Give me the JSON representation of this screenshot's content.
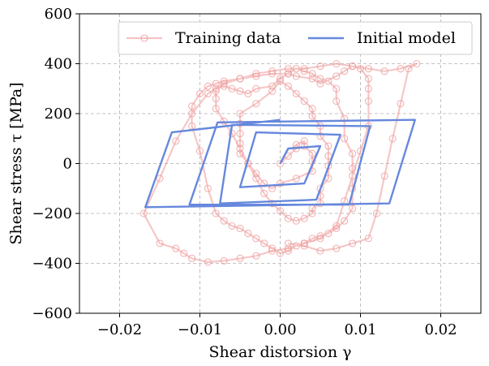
{
  "chart_data": {
    "type": "line",
    "title": "",
    "xlabel": "Shear distorsion γ",
    "ylabel": "Shear stress τ [MPa]",
    "xlim": [
      -0.025,
      0.025
    ],
    "ylim": [
      -600,
      600
    ],
    "xticks": [
      -0.02,
      -0.01,
      0.0,
      0.01,
      0.02
    ],
    "xtick_labels": [
      "−0.02",
      "−0.01",
      "0.00",
      "0.01",
      "0.02"
    ],
    "yticks": [
      -600,
      -400,
      -200,
      0,
      200,
      400,
      600
    ],
    "ytick_labels": [
      "−600",
      "−400",
      "−200",
      "0",
      "200",
      "400",
      "600"
    ],
    "grid": true,
    "legend": {
      "placement": "top-right",
      "columns": 2
    },
    "series": [
      {
        "name": "Training data",
        "color": "#ee9999",
        "marker": "circle",
        "x": [
          0.0,
          0.001,
          0.002,
          0.002,
          0.003,
          0.003,
          0.004,
          0.004,
          0.004,
          0.002,
          0.0,
          -0.001,
          -0.002,
          -0.003,
          -0.004,
          -0.005,
          -0.005,
          -0.005,
          -0.005,
          -0.005,
          -0.003,
          -0.001,
          0.0,
          0.001,
          0.002,
          0.003,
          0.004,
          0.004,
          0.005,
          0.005,
          0.006,
          0.006,
          0.006,
          0.006,
          0.005,
          0.005,
          0.005,
          0.004,
          0.004,
          0.003,
          0.002,
          0.001,
          0.0,
          -0.001,
          -0.002,
          -0.003,
          -0.004,
          -0.005,
          -0.006,
          -0.007,
          -0.008,
          -0.008,
          -0.008,
          -0.008,
          -0.007,
          -0.006,
          -0.005,
          -0.004,
          -0.003,
          -0.001,
          0.0,
          0.001,
          0.002,
          0.003,
          0.004,
          0.005,
          0.006,
          0.007,
          0.007,
          0.008,
          0.008,
          0.009,
          0.009,
          0.009,
          0.009,
          0.008,
          0.007,
          0.006,
          0.005,
          0.004,
          0.003,
          0.002,
          0.001,
          0.0,
          -0.001,
          -0.002,
          -0.003,
          -0.004,
          -0.005,
          -0.006,
          -0.007,
          -0.008,
          -0.009,
          -0.01,
          -0.011,
          -0.011,
          -0.01,
          -0.009,
          -0.008,
          -0.007,
          -0.005,
          -0.003,
          -0.001,
          0.001,
          0.002,
          0.004,
          0.005,
          0.007,
          0.008,
          0.009,
          0.01,
          0.011,
          0.011,
          0.011,
          0.011,
          0.01,
          0.009,
          0.008,
          0.007,
          0.005,
          0.003,
          0.001,
          -0.001,
          -0.003,
          -0.005,
          -0.007,
          -0.009,
          -0.011,
          -0.012,
          -0.013,
          -0.015,
          -0.017,
          -0.015,
          -0.013,
          -0.011,
          -0.009,
          -0.007,
          -0.005,
          -0.003,
          -0.001,
          0.001,
          0.003,
          0.005,
          0.007,
          0.009,
          0.011,
          0.013,
          0.015,
          0.017,
          0.016,
          0.015,
          0.014,
          0.013,
          0.012,
          0.011,
          0.009,
          0.007,
          0.005,
          0.003,
          0.001
        ],
        "y": [
          0,
          30,
          60,
          75,
          90,
          70,
          40,
          10,
          -30,
          -60,
          -80,
          -100,
          -80,
          -40,
          0,
          40,
          80,
          120,
          160,
          200,
          240,
          290,
          330,
          310,
          280,
          250,
          220,
          190,
          150,
          110,
          70,
          30,
          -10,
          -60,
          -100,
          -130,
          -160,
          -180,
          -200,
          -220,
          -230,
          -220,
          -190,
          -160,
          -120,
          -60,
          0,
          60,
          120,
          170,
          220,
          260,
          290,
          300,
          310,
          300,
          290,
          280,
          300,
          310,
          340,
          360,
          380,
          370,
          360,
          340,
          330,
          300,
          250,
          180,
          100,
          40,
          -20,
          -100,
          -180,
          -230,
          -260,
          -280,
          -290,
          -300,
          -320,
          -330,
          -350,
          -360,
          -340,
          -320,
          -300,
          -280,
          -260,
          -250,
          -230,
          -200,
          -100,
          50,
          150,
          230,
          280,
          310,
          320,
          330,
          340,
          350,
          360,
          360,
          350,
          340,
          320,
          350,
          370,
          390,
          380,
          340,
          300,
          250,
          150,
          50,
          -50,
          -150,
          -250,
          -300,
          -320,
          -340,
          -350,
          -370,
          -380,
          -390,
          -395,
          -380,
          -360,
          -340,
          -320,
          -200,
          -60,
          90,
          200,
          280,
          320,
          340,
          360,
          370,
          380,
          380,
          390,
          400,
          390,
          380,
          370,
          380,
          400,
          380,
          240,
          100,
          -50,
          -200,
          -300,
          -320,
          -340,
          -350,
          -330,
          -320
        ]
      },
      {
        "name": "Initial model",
        "color": "#6688dd",
        "marker": "none",
        "x": [
          0.0,
          0.001,
          0.005,
          0.003,
          -0.005,
          -0.003,
          0.0075,
          0.0045,
          -0.0075,
          -0.006,
          0.0112,
          0.0086,
          -0.0113,
          -0.0078,
          0.0168,
          0.0136,
          -0.0168,
          -0.0135,
          0.0
        ],
        "y": [
          0,
          60,
          70,
          -80,
          -95,
          125,
          115,
          -145,
          -160,
          155,
          150,
          -165,
          -165,
          165,
          175,
          -160,
          -175,
          125,
          175
        ]
      }
    ]
  }
}
